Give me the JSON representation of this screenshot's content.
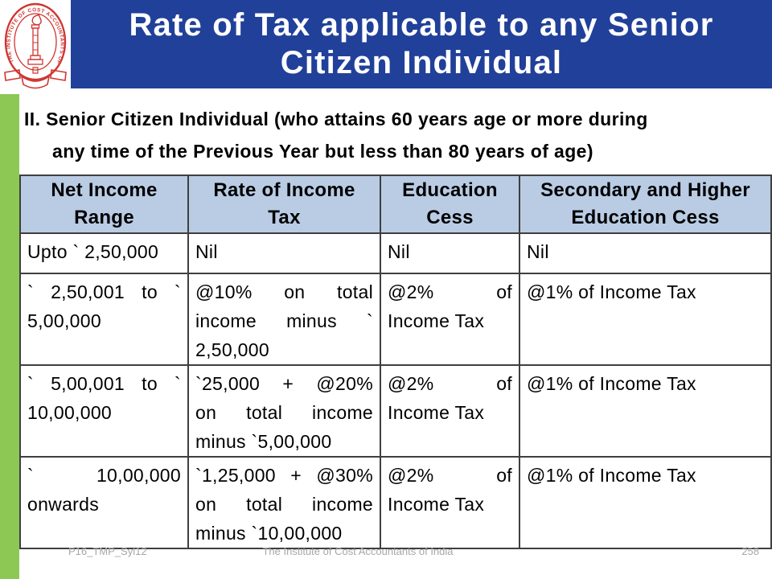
{
  "slide": {
    "title": "Rate of Tax applicable to any Senior\nCitizen Individual",
    "subtitle": "II. Senior Citizen Individual (who attains 60 years age or more during\nany time of the Previous Year but less than 80 years of age)",
    "logo": {
      "ring_text": "THE INSTITUTE OF COST ACCOUNTANTS OF INDIA"
    },
    "table": {
      "headers": [
        "Net Income\nRange",
        "Rate of Income\nTax",
        "Education\nCess",
        "Secondary and Higher\nEducation Cess"
      ],
      "rows": [
        [
          "Upto ` 2,50,000",
          "Nil",
          "Nil",
          "Nil"
        ],
        [
          "` 2,50,001 to `\n5,00,000",
          "@10% on total\nincome minus `\n2,50,000",
          "@2% of\nIncome Tax",
          "@1% of Income Tax"
        ],
        [
          "` 5,00,001 to `\n10,00,000",
          "`25,000 + @20%\non total income\nminus `5,00,000",
          "@2% of\nIncome Tax",
          "@1% of Income Tax"
        ],
        [
          "` 10,00,000\nonwards",
          "`1,25,000 + @30%\non total income\nminus `10,00,000",
          "@2% of\nIncome Tax",
          "@1% of Income Tax"
        ]
      ]
    },
    "footer": {
      "left": "P16_TMP_Syl12",
      "center": "The Institute of Cost Accountants of India",
      "page": "258"
    },
    "colors": {
      "banner_blue": "#21409A",
      "accent_green": "#8DC854",
      "table_header_bg": "#B9CCE4",
      "logo_red": "#CF3530",
      "footer_gray": "#A6A6A6",
      "border_dark": "#3F3F3F"
    }
  }
}
